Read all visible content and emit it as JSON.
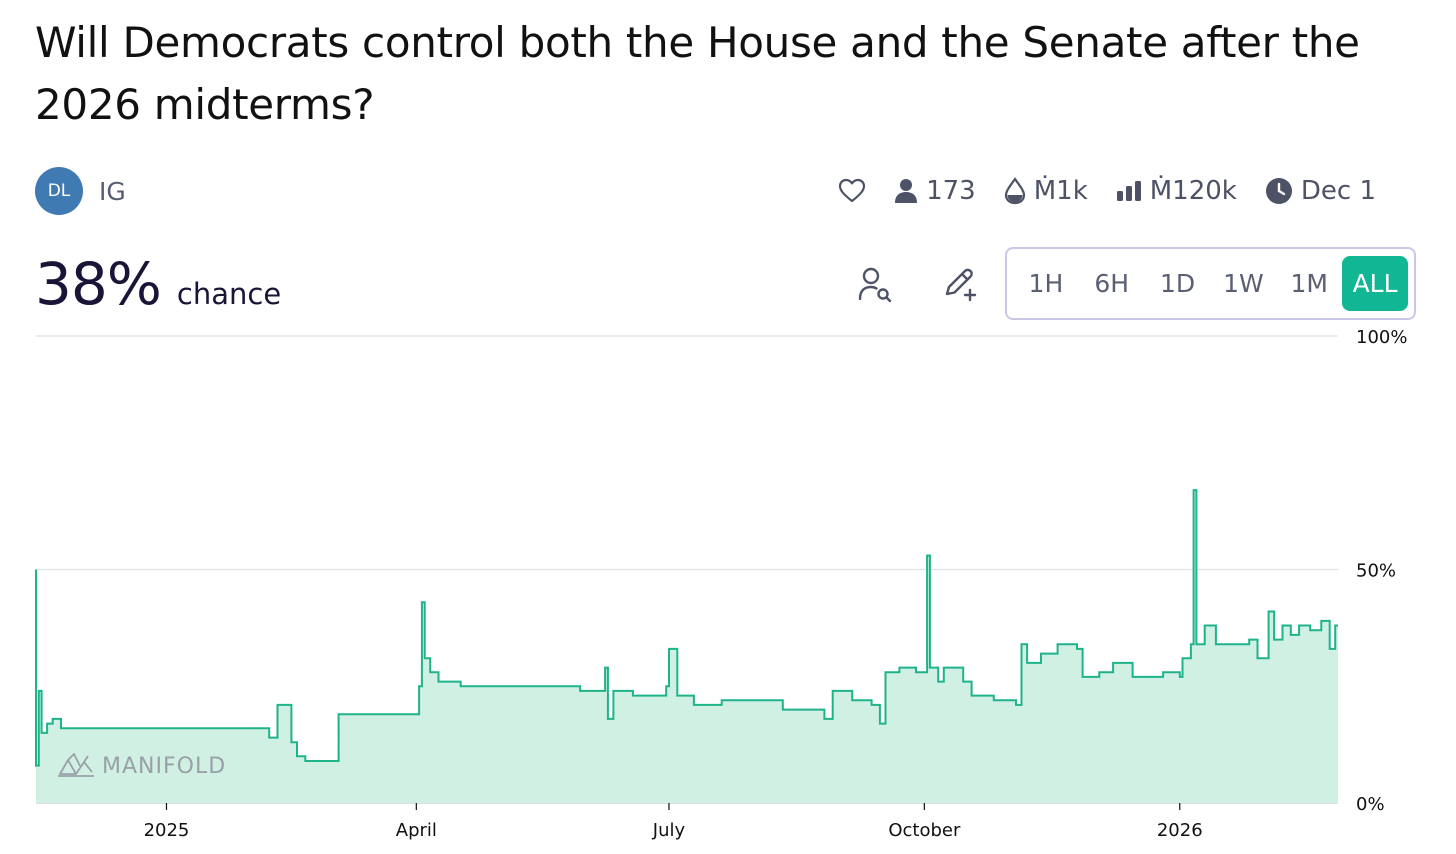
{
  "question": {
    "title": "Will Democrats control both the House and the Senate after the 2026 midterms?"
  },
  "author": {
    "initials": "DL",
    "name": "IG"
  },
  "stats": {
    "traders": "173",
    "liquidity": "Ṁ1k",
    "volume": "Ṁ120k",
    "close_date": "Dec 1"
  },
  "probability": {
    "value": "38%",
    "label": "chance"
  },
  "time_ranges": [
    "1H",
    "6H",
    "1D",
    "1W",
    "1M",
    "ALL"
  ],
  "selected_range": "ALL",
  "watermark": "MANIFOLD",
  "colors": {
    "accent": "#11b794",
    "line": "#1fb38a",
    "fill": "#d0f0e4",
    "avatar": "#3f7ab2",
    "text": "#1a1537"
  },
  "icons": [
    "heart-icon",
    "user-icon",
    "droplet-icon",
    "bar-chart-icon",
    "clock-icon",
    "search-user-icon",
    "pencil-plus-icon",
    "manifold-logo-icon"
  ],
  "chart_data": {
    "type": "area",
    "ylim": [
      0,
      100
    ],
    "yticks": [
      "100%",
      "50%",
      "0%"
    ],
    "xtick_labels": [
      "2025",
      "April",
      "July",
      "October",
      "2026"
    ],
    "x_domain": [
      "2024-11-15",
      "2026-02-27"
    ],
    "xticks_dates": [
      "2025-01-01",
      "2025-04-01",
      "2025-07-01",
      "2025-10-01",
      "2026-01-01"
    ],
    "points": [
      [
        "2024-11-15",
        50
      ],
      [
        "2024-11-15",
        8
      ],
      [
        "2024-11-16",
        24
      ],
      [
        "2024-11-17",
        15
      ],
      [
        "2024-11-19",
        17
      ],
      [
        "2024-11-21",
        18
      ],
      [
        "2024-11-24",
        16
      ],
      [
        "2024-11-27",
        16
      ],
      [
        "2025-02-05",
        16
      ],
      [
        "2025-02-07",
        14
      ],
      [
        "2025-02-10",
        21
      ],
      [
        "2025-02-13",
        21
      ],
      [
        "2025-02-15",
        13
      ],
      [
        "2025-02-17",
        10
      ],
      [
        "2025-02-20",
        9
      ],
      [
        "2025-03-02",
        9
      ],
      [
        "2025-03-04",
        19
      ],
      [
        "2025-03-31",
        19
      ],
      [
        "2025-04-02",
        25
      ],
      [
        "2025-04-03",
        43
      ],
      [
        "2025-04-04",
        31
      ],
      [
        "2025-04-06",
        28
      ],
      [
        "2025-04-09",
        26
      ],
      [
        "2025-04-15",
        26
      ],
      [
        "2025-04-17",
        25
      ],
      [
        "2025-05-28",
        25
      ],
      [
        "2025-05-30",
        24
      ],
      [
        "2025-06-07",
        24
      ],
      [
        "2025-06-08",
        29
      ],
      [
        "2025-06-09",
        18
      ],
      [
        "2025-06-11",
        24
      ],
      [
        "2025-06-15",
        24
      ],
      [
        "2025-06-18",
        23
      ],
      [
        "2025-06-28",
        23
      ],
      [
        "2025-06-30",
        25
      ],
      [
        "2025-07-01",
        33
      ],
      [
        "2025-07-04",
        23
      ],
      [
        "2025-07-10",
        21
      ],
      [
        "2025-07-20",
        22
      ],
      [
        "2025-08-09",
        22
      ],
      [
        "2025-08-11",
        20
      ],
      [
        "2025-08-24",
        20
      ],
      [
        "2025-08-26",
        18
      ],
      [
        "2025-08-29",
        24
      ],
      [
        "2025-09-05",
        22
      ],
      [
        "2025-09-12",
        21
      ],
      [
        "2025-09-15",
        17
      ],
      [
        "2025-09-17",
        28
      ],
      [
        "2025-09-22",
        29
      ],
      [
        "2025-09-28",
        28
      ],
      [
        "2025-10-01",
        28
      ],
      [
        "2025-10-02",
        53
      ],
      [
        "2025-10-03",
        29
      ],
      [
        "2025-10-06",
        26
      ],
      [
        "2025-10-08",
        29
      ],
      [
        "2025-10-15",
        26
      ],
      [
        "2025-10-18",
        23
      ],
      [
        "2025-10-26",
        22
      ],
      [
        "2025-11-03",
        21
      ],
      [
        "2025-11-05",
        34
      ],
      [
        "2025-11-07",
        30
      ],
      [
        "2025-11-12",
        32
      ],
      [
        "2025-11-18",
        34
      ],
      [
        "2025-11-25",
        33
      ],
      [
        "2025-11-27",
        27
      ],
      [
        "2025-12-03",
        28
      ],
      [
        "2025-12-08",
        30
      ],
      [
        "2025-12-15",
        27
      ],
      [
        "2025-12-26",
        28
      ],
      [
        "2025-12-30",
        28
      ],
      [
        "2026-01-01",
        27
      ],
      [
        "2026-01-02",
        31
      ],
      [
        "2026-01-05",
        34
      ],
      [
        "2026-01-06",
        67
      ],
      [
        "2026-01-07",
        34
      ],
      [
        "2026-01-10",
        38
      ],
      [
        "2026-01-14",
        34
      ],
      [
        "2026-01-20",
        34
      ],
      [
        "2026-01-26",
        35
      ],
      [
        "2026-01-29",
        31
      ],
      [
        "2026-02-02",
        41
      ],
      [
        "2026-02-04",
        35
      ],
      [
        "2026-02-07",
        38
      ],
      [
        "2026-02-10",
        36
      ],
      [
        "2026-02-13",
        38
      ],
      [
        "2026-02-17",
        37
      ],
      [
        "2026-02-21",
        39
      ],
      [
        "2026-02-24",
        33
      ],
      [
        "2026-02-26",
        38
      ],
      [
        "2026-02-27",
        38
      ]
    ]
  }
}
